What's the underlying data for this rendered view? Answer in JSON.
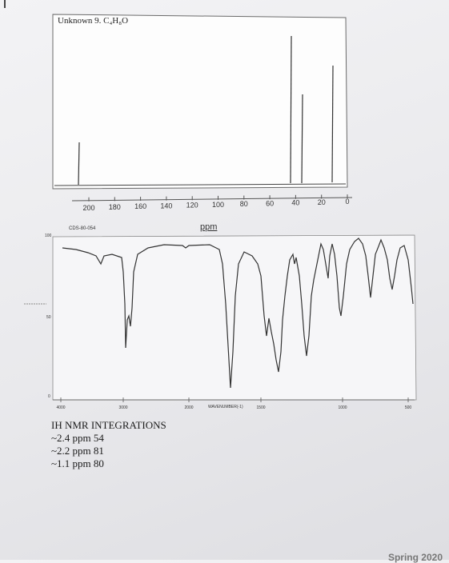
{
  "c13": {
    "title": "Unknown 9. C₄H₈O",
    "axis_ticks": [
      "200",
      "180",
      "160",
      "140",
      "120",
      "100",
      "80",
      "60",
      "40",
      "20",
      "0"
    ],
    "axis_label": "ppm"
  },
  "ir": {
    "cas_label": "CDS-80-054",
    "x_ticks": [
      "4000",
      "3000",
      "2000",
      "1500",
      "1000",
      "500"
    ],
    "y_ticks": [
      "100",
      "50",
      "0"
    ],
    "x_label": "WAVENUMBER(-1)"
  },
  "nmr_integrations": {
    "heading": "IH NMR INTEGRATIONS",
    "lines": [
      "~2.4 ppm 54",
      "~2.2 ppm 81",
      "~1.1 ppm 80"
    ]
  },
  "footer": {
    "text": "Spring 2020"
  }
}
